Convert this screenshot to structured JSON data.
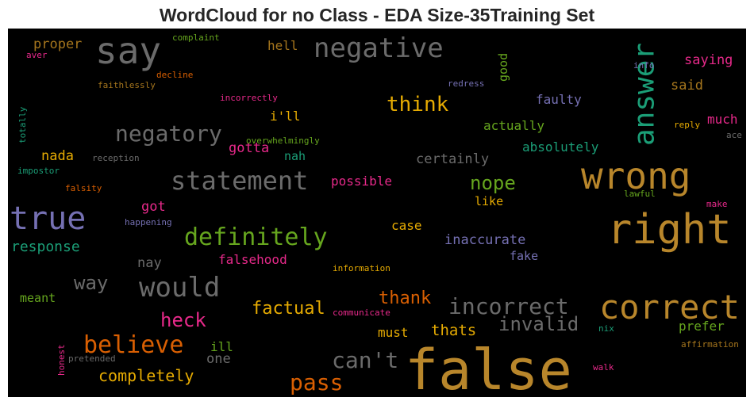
{
  "title": "WordCloud for no Class - EDA Size-35Training Set",
  "colors": {
    "gray": "#6b6b6b",
    "gold": "#b8862b",
    "teal": "#1b9e77",
    "green": "#66a61e",
    "orange": "#d95f02",
    "magenta": "#e7298a",
    "purple": "#7570b3",
    "yellow": "#e6ab02",
    "brown": "#a6761d"
  },
  "words": [
    {
      "text": "false",
      "color": "gold"
    },
    {
      "text": "right",
      "color": "gold"
    },
    {
      "text": "wrong",
      "color": "gold"
    },
    {
      "text": "correct",
      "color": "gold"
    },
    {
      "text": "true",
      "color": "purple"
    },
    {
      "text": "say",
      "color": "gray"
    },
    {
      "text": "negative",
      "color": "gray"
    },
    {
      "text": "answer",
      "color": "teal"
    },
    {
      "text": "statement",
      "color": "gray"
    },
    {
      "text": "negatory",
      "color": "gray"
    },
    {
      "text": "definitely",
      "color": "green"
    },
    {
      "text": "would",
      "color": "gray"
    },
    {
      "text": "believe",
      "color": "orange"
    },
    {
      "text": "incorrect",
      "color": "gray"
    },
    {
      "text": "can't",
      "color": "gray"
    },
    {
      "text": "invalid",
      "color": "gray"
    },
    {
      "text": "pass",
      "color": "orange"
    },
    {
      "text": "think",
      "color": "yellow"
    },
    {
      "text": "heck",
      "color": "magenta"
    },
    {
      "text": "way",
      "color": "gray"
    },
    {
      "text": "factual",
      "color": "yellow"
    },
    {
      "text": "thank",
      "color": "orange"
    },
    {
      "text": "completely",
      "color": "yellow"
    },
    {
      "text": "nope",
      "color": "green"
    },
    {
      "text": "saying",
      "color": "magenta"
    },
    {
      "text": "response",
      "color": "teal"
    },
    {
      "text": "thats",
      "color": "yellow"
    },
    {
      "text": "certainly",
      "color": "gray"
    },
    {
      "text": "inaccurate",
      "color": "purple"
    },
    {
      "text": "absolutely",
      "color": "teal"
    },
    {
      "text": "actually",
      "color": "green"
    },
    {
      "text": "gotta",
      "color": "magenta"
    },
    {
      "text": "falsehood",
      "color": "magenta"
    },
    {
      "text": "prefer",
      "color": "green"
    },
    {
      "text": "must",
      "color": "yellow"
    },
    {
      "text": "said",
      "color": "brown"
    },
    {
      "text": "faulty",
      "color": "purple"
    },
    {
      "text": "much",
      "color": "magenta"
    },
    {
      "text": "proper",
      "color": "brown"
    },
    {
      "text": "nada",
      "color": "yellow"
    },
    {
      "text": "possible",
      "color": "magenta"
    },
    {
      "text": "i'll",
      "color": "yellow"
    },
    {
      "text": "good",
      "color": "green"
    },
    {
      "text": "hell",
      "color": "brown"
    },
    {
      "text": "got",
      "color": "magenta"
    },
    {
      "text": "nay",
      "color": "gray"
    },
    {
      "text": "case",
      "color": "yellow"
    },
    {
      "text": "fake",
      "color": "purple"
    },
    {
      "text": "like",
      "color": "yellow"
    },
    {
      "text": "ill",
      "color": "green"
    },
    {
      "text": "one",
      "color": "gray"
    },
    {
      "text": "meant",
      "color": "green"
    },
    {
      "text": "nah",
      "color": "teal"
    },
    {
      "text": "complaint",
      "color": "green"
    },
    {
      "text": "aver",
      "color": "magenta"
    },
    {
      "text": "decline",
      "color": "orange"
    },
    {
      "text": "faithlessly",
      "color": "brown"
    },
    {
      "text": "incorrectly",
      "color": "magenta"
    },
    {
      "text": "redress",
      "color": "purple"
    },
    {
      "text": "info",
      "color": "purple"
    },
    {
      "text": "totally",
      "color": "teal"
    },
    {
      "text": "reception",
      "color": "gray"
    },
    {
      "text": "overwhelmingly",
      "color": "green"
    },
    {
      "text": "reply",
      "color": "yellow"
    },
    {
      "text": "ace",
      "color": "gray"
    },
    {
      "text": "impostor",
      "color": "teal"
    },
    {
      "text": "falsity",
      "color": "orange"
    },
    {
      "text": "lawful",
      "color": "green"
    },
    {
      "text": "make",
      "color": "magenta"
    },
    {
      "text": "happening",
      "color": "purple"
    },
    {
      "text": "information",
      "color": "yellow"
    },
    {
      "text": "communicate",
      "color": "magenta"
    },
    {
      "text": "nix",
      "color": "teal"
    },
    {
      "text": "affirmation",
      "color": "brown"
    },
    {
      "text": "pretended",
      "color": "gray"
    },
    {
      "text": "honest",
      "color": "magenta"
    },
    {
      "text": "walk",
      "color": "magenta"
    }
  ]
}
